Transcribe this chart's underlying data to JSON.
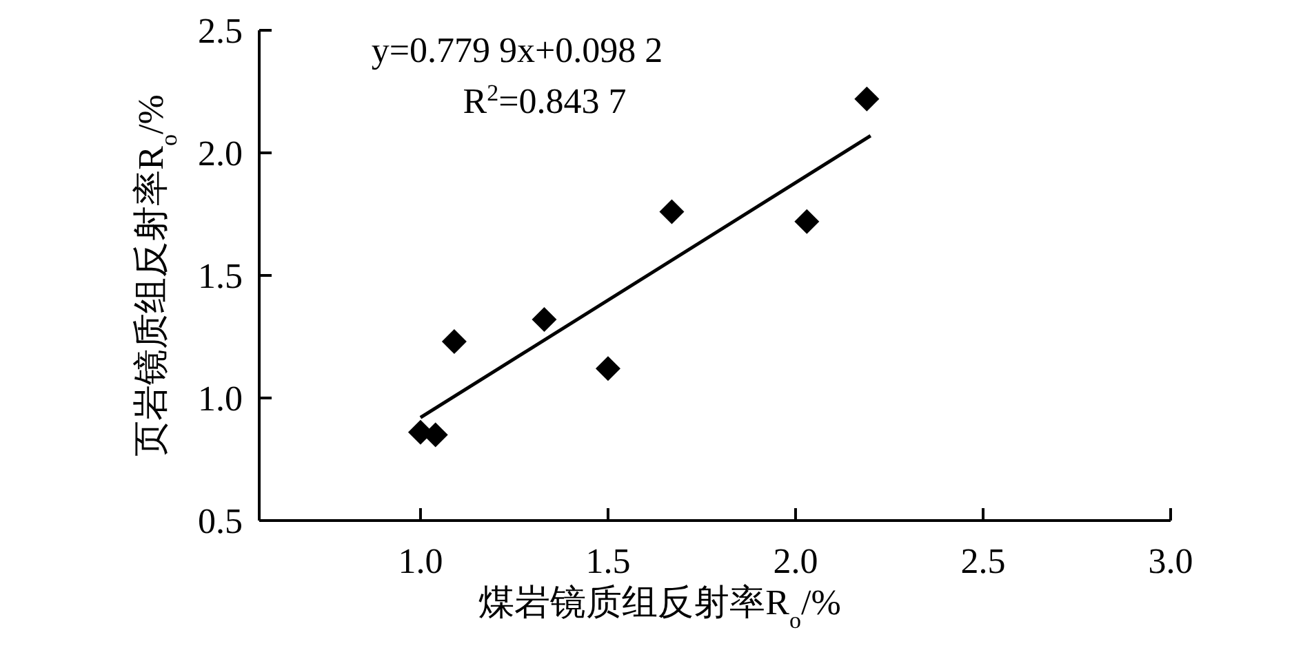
{
  "chart_data": {
    "type": "scatter",
    "xlabel": "煤岩镜质组反射率R$_{o}$/%",
    "ylabel": "页岩镜质组反射率R$_{o}$/%",
    "xlim": [
      0.57,
      3.0
    ],
    "ylim": [
      0.5,
      2.5
    ],
    "xticks": [
      {
        "value": 1.0,
        "label": "1.0"
      },
      {
        "value": 1.5,
        "label": "1.5"
      },
      {
        "value": 2.0,
        "label": "2.0"
      },
      {
        "value": 2.5,
        "label": "2.5"
      },
      {
        "value": 3.0,
        "label": "3.0"
      }
    ],
    "yticks": [
      {
        "value": 0.5,
        "label": "0.5"
      },
      {
        "value": 1.0,
        "label": "1.0"
      },
      {
        "value": 1.5,
        "label": "1.5"
      },
      {
        "value": 2.0,
        "label": "2.0"
      },
      {
        "value": 2.5,
        "label": "2.5"
      }
    ],
    "series": [
      {
        "type": "scatter",
        "marker": "diamond",
        "color": "#000000",
        "x": [
          1.0,
          1.04,
          1.09,
          1.33,
          1.5,
          1.67,
          2.03,
          2.19
        ],
        "values": [
          0.86,
          0.85,
          1.23,
          1.32,
          1.12,
          1.76,
          1.72,
          2.22
        ]
      },
      {
        "type": "line",
        "marker": "none",
        "line_style": "solid",
        "color": "#000000",
        "x": [
          1.0,
          2.2
        ],
        "values": [
          0.92,
          2.07
        ]
      }
    ],
    "annotations": [
      "y=0.779 9x+0.098 2",
      "R$^{2}$=0.843 7"
    ]
  }
}
